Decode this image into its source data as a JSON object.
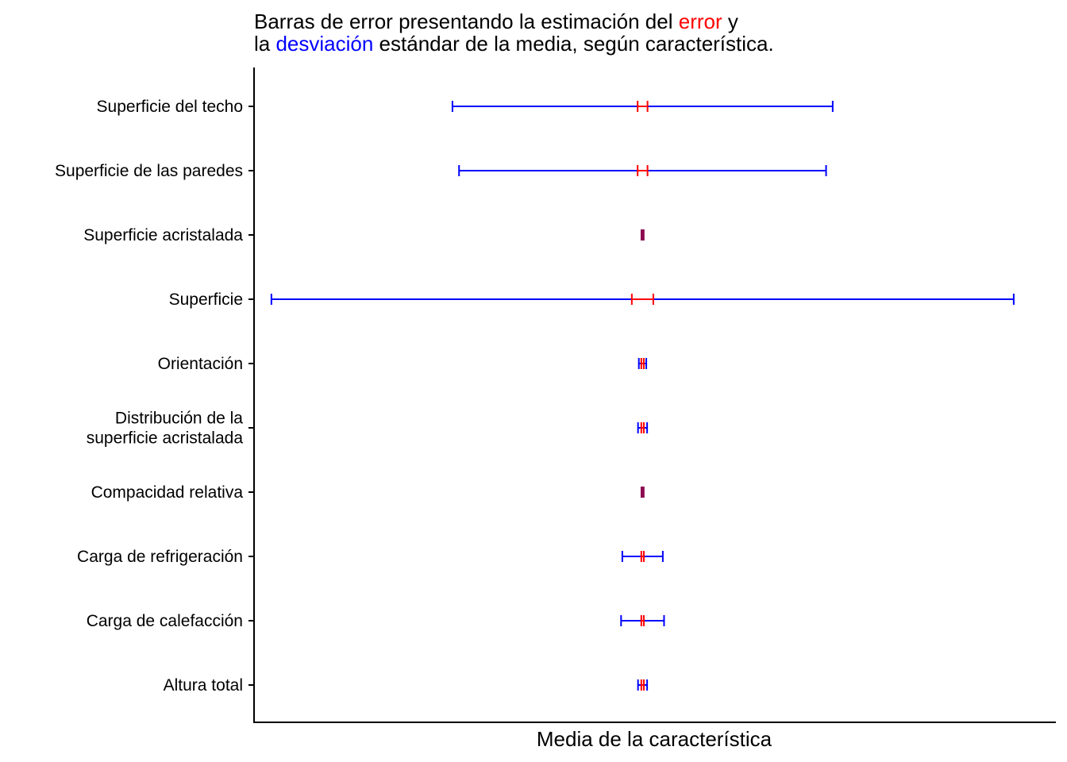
{
  "chart_data": {
    "type": "errorbar",
    "title": {
      "line1": {
        "before": "Barras de error presentando la estimación del ",
        "highlight": "error",
        "after": " y"
      },
      "line2": {
        "before": "la ",
        "highlight": "desviación",
        "after": " estándar de la media, según característica."
      }
    },
    "xlabel": "Media de la característica",
    "ylabel": "",
    "grid": false,
    "x_ticks_visible": false,
    "colors": {
      "error": "#ff0000",
      "sd": "#0000ff",
      "overlap": "#8b0a50",
      "axis": "#000000"
    },
    "center": 0,
    "xlim": [
      -0.47,
      0.5
    ],
    "categories": [
      {
        "label": [
          "Superficie del techo"
        ],
        "error": 0.006,
        "sd": 0.23
      },
      {
        "label": [
          "Superficie de las paredes"
        ],
        "error": 0.006,
        "sd": 0.222
      },
      {
        "label": [
          "Superficie acristalada"
        ],
        "error": 0.0008,
        "sd": 0.0009
      },
      {
        "label": [
          "Superficie"
        ],
        "error": 0.013,
        "sd": 0.449
      },
      {
        "label": [
          "Orientación"
        ],
        "error": 0.0015,
        "sd": 0.0045
      },
      {
        "label": [
          "Distribución de la",
          "superficie acristalada"
        ],
        "error": 0.0015,
        "sd": 0.0055
      },
      {
        "label": [
          "Compacidad relativa"
        ],
        "error": 0.0008,
        "sd": 0.0009
      },
      {
        "label": [
          "Carga de refrigeración"
        ],
        "error": 0.0015,
        "sd": 0.0245
      },
      {
        "label": [
          "Carga de calefacción"
        ],
        "error": 0.0015,
        "sd": 0.026
      },
      {
        "label": [
          "Altura total"
        ],
        "error": 0.0015,
        "sd": 0.0055
      }
    ]
  }
}
